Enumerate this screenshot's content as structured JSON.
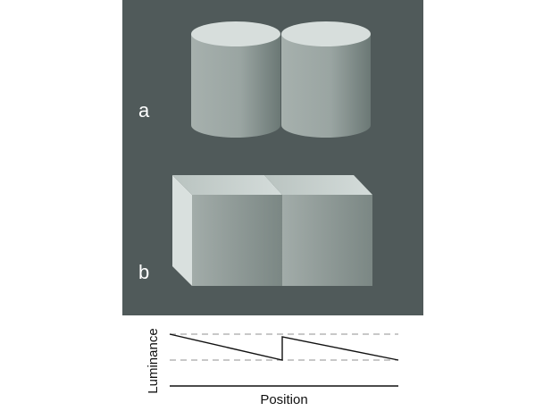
{
  "panels": {
    "a": {
      "label": "a",
      "object": "two adjacent cylinders"
    },
    "b": {
      "label": "b",
      "object": "two adjacent boxes"
    }
  },
  "plot": {
    "ylabel": "Luminance",
    "xlabel": "Position"
  },
  "colors": {
    "background_panel": "#505a5a",
    "page": "#ffffff",
    "label_text": "#ffffff",
    "plot_line": "#111111",
    "dashed_line": "#a8a8a8"
  }
}
